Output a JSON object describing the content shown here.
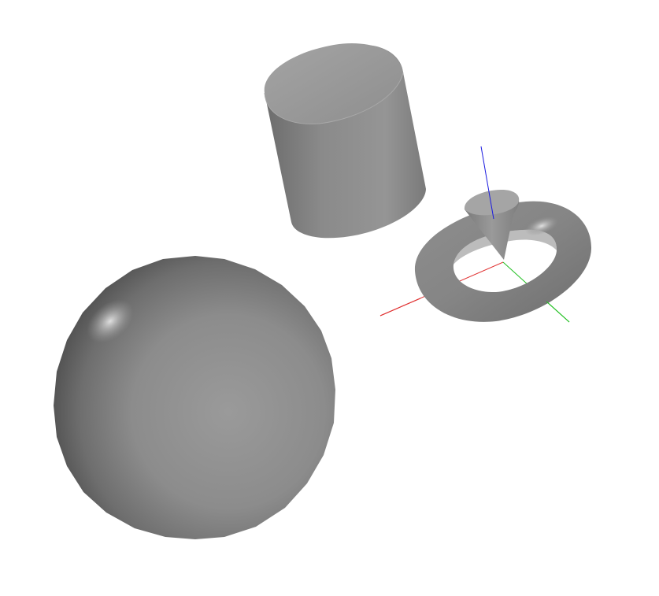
{
  "scene": {
    "background": "#ffffff",
    "shape_color": "#8a8a8a",
    "objects": [
      {
        "kind": "sphere",
        "name": "sphere"
      },
      {
        "kind": "cylinder",
        "name": "cylinder"
      },
      {
        "kind": "torus",
        "name": "torus"
      },
      {
        "kind": "cone",
        "name": "cone"
      }
    ],
    "axes": {
      "x_color": "#e03030",
      "y_color": "#20c020",
      "z_color": "#1a1ae0"
    }
  }
}
